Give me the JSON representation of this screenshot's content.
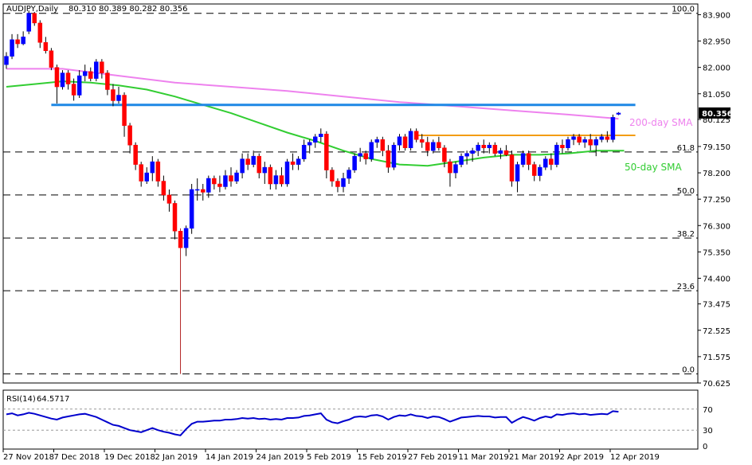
{
  "header": {
    "symbol": "AUDJPY,Daily",
    "ohlc": "80.310 80.389 80.282 80.356"
  },
  "rsi_header": {
    "label": "RSI(14)",
    "value": "64.5717"
  },
  "chart_data": {
    "type": "candlestick",
    "price_ticks": [
      "83.900",
      "82.950",
      "82.000",
      "81.050",
      "80.125",
      "79.150",
      "78.200",
      "77.250",
      "76.300",
      "75.350",
      "74.400",
      "73.475",
      "72.525",
      "71.575",
      "70.625"
    ],
    "y_range": [
      70.625,
      84.2
    ],
    "current_price": "80.356",
    "date_labels": [
      "27 Nov 2018",
      "7 Dec 2018",
      "19 Dec 2018",
      "2 Jan 2019",
      "14 Jan 2019",
      "24 Jan 2019",
      "5 Feb 2019",
      "15 Feb 2019",
      "27 Feb 2019",
      "11 Mar 2019",
      "21 Mar 2019",
      "2 Apr 2019",
      "12 Apr 2019"
    ],
    "fib_levels": [
      {
        "label": "100.0",
        "price": 83.95
      },
      {
        "label": "61.8",
        "price": 78.95
      },
      {
        "label": "50.0",
        "price": 77.4
      },
      {
        "label": "38.2",
        "price": 75.85
      },
      {
        "label": "23.6",
        "price": 73.95
      },
      {
        "label": "0.0",
        "price": 70.95
      }
    ],
    "resistance_lines": [
      {
        "name": "blue",
        "price": 80.65,
        "start": 8,
        "end": 112,
        "color": "#1e88e5"
      },
      {
        "name": "orange",
        "price": 79.55,
        "start": 73,
        "end": 112,
        "color": "#f39c12"
      }
    ],
    "annotations": {
      "sma200": "200-day SMA",
      "sma50": "50-day SMA"
    },
    "colors": {
      "bull": "#0000ff",
      "bear": "#ff0000",
      "sma200": "#ee82ee",
      "sma50": "#32cd32",
      "rsi": "#0000cd",
      "current_bg": "#000000"
    },
    "candles": [
      [
        82.1,
        82.55,
        81.95,
        82.4
      ],
      [
        82.4,
        83.2,
        82.3,
        83.0
      ],
      [
        83.0,
        83.2,
        82.7,
        82.85
      ],
      [
        82.85,
        83.3,
        82.8,
        83.1
      ],
      [
        83.3,
        84.05,
        83.2,
        83.95
      ],
      [
        83.95,
        84.0,
        83.5,
        83.6
      ],
      [
        83.6,
        83.7,
        82.7,
        82.9
      ],
      [
        82.9,
        83.1,
        82.5,
        82.6
      ],
      [
        82.6,
        82.7,
        81.9,
        82.0
      ],
      [
        82.0,
        82.1,
        80.7,
        81.3
      ],
      [
        81.3,
        81.9,
        81.2,
        81.8
      ],
      [
        81.8,
        81.9,
        81.2,
        81.4
      ],
      [
        81.4,
        81.6,
        80.8,
        81.0
      ],
      [
        81.0,
        81.9,
        80.9,
        81.7
      ],
      [
        81.7,
        82.1,
        81.5,
        81.85
      ],
      [
        81.85,
        82.0,
        81.5,
        81.6
      ],
      [
        81.6,
        82.3,
        81.5,
        82.2
      ],
      [
        82.2,
        82.3,
        81.6,
        81.8
      ],
      [
        81.8,
        81.9,
        81.0,
        81.2
      ],
      [
        81.2,
        81.4,
        80.6,
        80.8
      ],
      [
        80.8,
        81.3,
        80.7,
        81.0
      ],
      [
        81.0,
        81.1,
        79.5,
        79.9
      ],
      [
        79.9,
        80.0,
        78.9,
        79.2
      ],
      [
        79.2,
        79.3,
        78.3,
        78.5
      ],
      [
        78.5,
        78.6,
        77.7,
        77.9
      ],
      [
        77.9,
        78.4,
        77.8,
        78.2
      ],
      [
        78.2,
        78.8,
        77.9,
        78.6
      ],
      [
        78.6,
        78.7,
        77.7,
        77.9
      ],
      [
        77.9,
        78.1,
        77.2,
        77.4
      ],
      [
        77.4,
        77.6,
        76.8,
        77.1
      ],
      [
        77.1,
        77.2,
        75.8,
        76.1
      ],
      [
        76.1,
        76.2,
        70.95,
        75.5
      ],
      [
        75.5,
        76.3,
        75.2,
        76.2
      ],
      [
        76.2,
        77.8,
        76.0,
        77.6
      ],
      [
        77.6,
        78.0,
        77.2,
        77.6
      ],
      [
        77.6,
        77.8,
        77.2,
        77.5
      ],
      [
        77.5,
        78.1,
        77.3,
        78.0
      ],
      [
        78.0,
        78.1,
        77.6,
        77.8
      ],
      [
        77.8,
        78.1,
        77.5,
        77.7
      ],
      [
        77.7,
        78.3,
        77.6,
        78.1
      ],
      [
        78.1,
        78.4,
        77.7,
        77.9
      ],
      [
        77.9,
        78.3,
        77.8,
        78.2
      ],
      [
        78.2,
        78.9,
        78.0,
        78.7
      ],
      [
        78.7,
        78.9,
        78.3,
        78.5
      ],
      [
        78.5,
        79.0,
        78.4,
        78.8
      ],
      [
        78.8,
        78.9,
        78.0,
        78.2
      ],
      [
        78.2,
        78.6,
        77.8,
        78.4
      ],
      [
        78.4,
        78.5,
        77.6,
        77.8
      ],
      [
        77.8,
        78.3,
        77.6,
        78.1
      ],
      [
        78.1,
        78.4,
        77.7,
        77.8
      ],
      [
        77.8,
        78.7,
        77.7,
        78.6
      ],
      [
        78.6,
        78.9,
        78.3,
        78.5
      ],
      [
        78.5,
        78.8,
        78.3,
        78.7
      ],
      [
        78.7,
        79.4,
        78.6,
        79.2
      ],
      [
        79.2,
        79.4,
        78.9,
        79.3
      ],
      [
        79.3,
        79.6,
        79.1,
        79.5
      ],
      [
        79.5,
        79.8,
        79.3,
        79.6
      ],
      [
        79.6,
        79.7,
        78.0,
        78.3
      ],
      [
        78.3,
        78.4,
        77.7,
        77.9
      ],
      [
        77.9,
        78.0,
        77.5,
        77.7
      ],
      [
        77.7,
        78.2,
        77.5,
        78.0
      ],
      [
        78.0,
        78.4,
        77.8,
        78.3
      ],
      [
        78.3,
        78.9,
        78.2,
        78.8
      ],
      [
        78.8,
        79.1,
        78.6,
        78.9
      ],
      [
        78.9,
        79.0,
        78.5,
        78.7
      ],
      [
        78.7,
        79.4,
        78.6,
        79.3
      ],
      [
        79.3,
        79.5,
        79.1,
        79.4
      ],
      [
        79.4,
        79.5,
        78.8,
        79.0
      ],
      [
        79.0,
        79.2,
        78.2,
        78.4
      ],
      [
        78.4,
        79.3,
        78.3,
        79.2
      ],
      [
        79.2,
        79.6,
        79.0,
        79.5
      ],
      [
        79.5,
        79.6,
        79.0,
        79.1
      ],
      [
        79.1,
        79.8,
        79.0,
        79.7
      ],
      [
        79.7,
        79.8,
        79.3,
        79.4
      ],
      [
        79.4,
        79.6,
        79.1,
        79.3
      ],
      [
        79.3,
        79.5,
        78.8,
        79.0
      ],
      [
        79.0,
        79.4,
        78.9,
        79.3
      ],
      [
        79.3,
        79.5,
        79.0,
        79.1
      ],
      [
        79.1,
        79.2,
        78.4,
        78.6
      ],
      [
        78.6,
        78.7,
        77.7,
        78.2
      ],
      [
        78.2,
        78.6,
        78.0,
        78.5
      ],
      [
        78.5,
        78.9,
        78.4,
        78.8
      ],
      [
        78.8,
        79.0,
        78.5,
        78.9
      ],
      [
        78.9,
        79.1,
        78.6,
        79.0
      ],
      [
        79.0,
        79.3,
        78.8,
        79.2
      ],
      [
        79.2,
        79.4,
        78.9,
        79.1
      ],
      [
        79.1,
        79.3,
        78.9,
        79.2
      ],
      [
        79.2,
        79.3,
        78.8,
        78.9
      ],
      [
        78.9,
        79.1,
        78.7,
        79.0
      ],
      [
        79.0,
        79.2,
        78.8,
        78.85
      ],
      [
        78.85,
        79.0,
        77.7,
        77.9
      ],
      [
        77.9,
        78.6,
        77.5,
        78.5
      ],
      [
        78.5,
        79.0,
        78.4,
        78.9
      ],
      [
        78.9,
        79.0,
        78.3,
        78.5
      ],
      [
        78.5,
        78.6,
        77.9,
        78.1
      ],
      [
        78.1,
        78.5,
        77.9,
        78.4
      ],
      [
        78.4,
        78.8,
        78.3,
        78.7
      ],
      [
        78.7,
        78.9,
        78.3,
        78.5
      ],
      [
        78.5,
        79.3,
        78.4,
        79.2
      ],
      [
        79.2,
        79.4,
        78.9,
        79.1
      ],
      [
        79.1,
        79.5,
        79.0,
        79.4
      ],
      [
        79.4,
        79.6,
        79.2,
        79.5
      ],
      [
        79.5,
        79.6,
        79.2,
        79.3
      ],
      [
        79.3,
        79.5,
        79.1,
        79.4
      ],
      [
        79.4,
        79.6,
        79.0,
        79.2
      ],
      [
        79.2,
        79.5,
        78.8,
        79.4
      ],
      [
        79.4,
        79.6,
        79.3,
        79.5
      ],
      [
        79.5,
        79.7,
        79.3,
        79.4
      ],
      [
        79.4,
        80.3,
        79.3,
        80.2
      ],
      [
        80.31,
        80.39,
        80.28,
        80.356
      ]
    ],
    "sma200": [
      [
        0,
        81.95
      ],
      [
        10,
        81.95
      ],
      [
        20,
        81.7
      ],
      [
        30,
        81.45
      ],
      [
        40,
        81.3
      ],
      [
        50,
        81.15
      ],
      [
        60,
        80.95
      ],
      [
        70,
        80.75
      ],
      [
        80,
        80.6
      ],
      [
        90,
        80.45
      ],
      [
        100,
        80.3
      ],
      [
        109,
        80.15
      ]
    ],
    "sma50": [
      [
        0,
        81.3
      ],
      [
        5,
        81.4
      ],
      [
        10,
        81.5
      ],
      [
        15,
        81.45
      ],
      [
        20,
        81.35
      ],
      [
        25,
        81.2
      ],
      [
        30,
        80.95
      ],
      [
        35,
        80.65
      ],
      [
        40,
        80.35
      ],
      [
        45,
        80.0
      ],
      [
        50,
        79.65
      ],
      [
        55,
        79.35
      ],
      [
        60,
        79.0
      ],
      [
        65,
        78.7
      ],
      [
        70,
        78.5
      ],
      [
        75,
        78.45
      ],
      [
        80,
        78.6
      ],
      [
        85,
        78.75
      ],
      [
        90,
        78.85
      ],
      [
        95,
        78.85
      ],
      [
        100,
        78.9
      ],
      [
        105,
        79.0
      ],
      [
        110,
        79.0
      ]
    ],
    "rsi": {
      "levels": [
        70,
        30
      ],
      "ticks": [
        "70",
        "30",
        "0"
      ],
      "values": [
        60,
        62,
        58,
        60,
        63,
        61,
        58,
        55,
        52,
        50,
        54,
        56,
        58,
        60,
        61,
        58,
        55,
        50,
        45,
        40,
        38,
        34,
        30,
        28,
        26,
        30,
        34,
        30,
        27,
        25,
        22,
        20,
        32,
        42,
        46,
        46,
        47,
        48,
        48,
        50,
        50,
        51,
        53,
        52,
        53,
        51,
        52,
        50,
        51,
        50,
        53,
        53,
        54,
        57,
        58,
        60,
        62,
        50,
        45,
        43,
        47,
        50,
        55,
        56,
        55,
        58,
        59,
        56,
        50,
        55,
        58,
        57,
        60,
        57,
        56,
        53,
        56,
        55,
        51,
        46,
        50,
        54,
        55,
        56,
        57,
        56,
        56,
        54,
        55,
        55,
        44,
        50,
        55,
        52,
        48,
        53,
        56,
        54,
        60,
        59,
        61,
        62,
        60,
        61,
        59,
        60,
        61,
        60,
        66,
        65
      ]
    }
  }
}
